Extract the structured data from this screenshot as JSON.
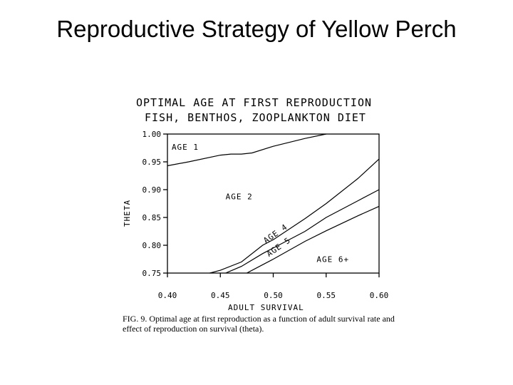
{
  "slide": {
    "title": "Reproductive Strategy of Yellow Perch"
  },
  "chart_data": {
    "type": "line",
    "title": "OPTIMAL AGE AT FIRST REPRODUCTION",
    "subtitle": "FISH, BENTHOS, ZOOPLANKTON DIET",
    "xlabel": "ADULT SURVIVAL",
    "ylabel": "THETA",
    "xlim": [
      0.4,
      0.6
    ],
    "ylim": [
      0.75,
      1.0
    ],
    "x_ticks": [
      "0.40",
      "0.45",
      "0.50",
      "0.55",
      "0.60"
    ],
    "y_ticks": [
      "1.00",
      "0.95",
      "0.90",
      "0.85",
      "0.80",
      "0.75"
    ],
    "grid": false,
    "series": [
      {
        "x": [
          0.4,
          0.42,
          0.45,
          0.46,
          0.47,
          0.48,
          0.5,
          0.53,
          0.55
        ],
        "y": [
          0.943,
          0.95,
          0.962,
          0.964,
          0.964,
          0.966,
          0.978,
          0.992,
          1.0
        ]
      },
      {
        "x": [
          0.44,
          0.45,
          0.47,
          0.49,
          0.5,
          0.53,
          0.55,
          0.58,
          0.6
        ],
        "y": [
          0.75,
          0.755,
          0.77,
          0.8,
          0.81,
          0.848,
          0.875,
          0.92,
          0.955
        ]
      },
      {
        "x": [
          0.455,
          0.47,
          0.49,
          0.5,
          0.53,
          0.55,
          0.58,
          0.6
        ],
        "y": [
          0.75,
          0.762,
          0.785,
          0.795,
          0.825,
          0.85,
          0.88,
          0.9
        ]
      },
      {
        "x": [
          0.475,
          0.49,
          0.5,
          0.53,
          0.55,
          0.58,
          0.6
        ],
        "y": [
          0.75,
          0.765,
          0.775,
          0.807,
          0.826,
          0.853,
          0.87
        ]
      }
    ],
    "annotations": [
      {
        "text": "AGE 1",
        "x": 0.404,
        "y": 0.972,
        "rotate": 0
      },
      {
        "text": "AGE 2",
        "x": 0.455,
        "y": 0.883,
        "rotate": 0
      },
      {
        "text": "AGE 4",
        "x": 0.493,
        "y": 0.803,
        "rotate": -35
      },
      {
        "text": "AGE 5",
        "x": 0.496,
        "y": 0.779,
        "rotate": -35
      },
      {
        "text": "AGE 6+",
        "x": 0.541,
        "y": 0.77,
        "rotate": 0
      }
    ]
  },
  "caption": {
    "text": "FIG. 9. Optimal age at first reproduction as a function of adult survival rate and effect of reproduction on survival (theta)."
  }
}
